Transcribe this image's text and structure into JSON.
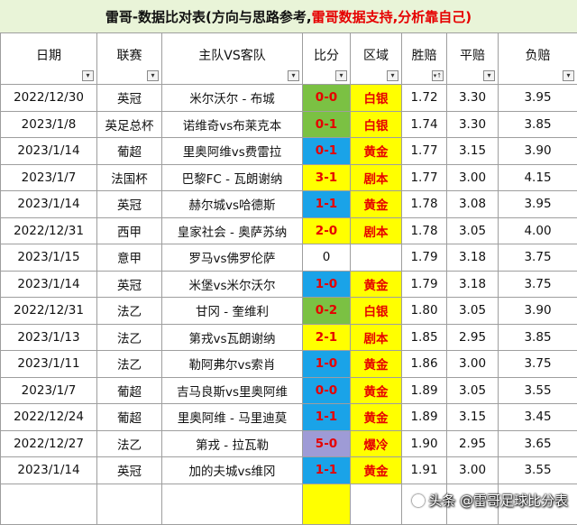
{
  "banner": {
    "part1": "雷哥-数据比对表(方向与思路参考,",
    "part2": "雷哥数据支持,分析靠自己)"
  },
  "headers": [
    "日期",
    "联赛",
    "主队VS客队",
    "比分",
    "区域",
    "胜赔",
    "平赔",
    "负赔"
  ],
  "sorted_column_icon": "sort-asc-filter-icon",
  "rows": [
    {
      "date": "2022/12/30",
      "league": "英冠",
      "match": "米尔沃尔 - 布城",
      "score": "0-0",
      "score_color": "green",
      "region": "白银",
      "win": "1.72",
      "draw": "3.30",
      "loss": "3.95"
    },
    {
      "date": "2023/1/8",
      "league": "英足总杯",
      "match": "诺维奇vs布莱克本",
      "score": "0-1",
      "score_color": "green",
      "region": "白银",
      "win": "1.74",
      "draw": "3.30",
      "loss": "3.85"
    },
    {
      "date": "2023/1/14",
      "league": "葡超",
      "match": "里奥阿维vs费雷拉",
      "score": "0-1",
      "score_color": "blue",
      "region": "黄金",
      "win": "1.77",
      "draw": "3.15",
      "loss": "3.90"
    },
    {
      "date": "2023/1/7",
      "league": "法国杯",
      "match": "巴黎FC - 瓦朗谢纳",
      "score": "3-1",
      "score_color": "yellow",
      "region": "剧本",
      "win": "1.77",
      "draw": "3.00",
      "loss": "4.15"
    },
    {
      "date": "2023/1/14",
      "league": "英冠",
      "match": "赫尔城vs哈德斯",
      "score": "1-1",
      "score_color": "blue",
      "region": "黄金",
      "win": "1.78",
      "draw": "3.08",
      "loss": "3.95"
    },
    {
      "date": "2022/12/31",
      "league": "西甲",
      "match": "皇家社会 - 奥萨苏纳",
      "score": "2-0",
      "score_color": "yellow",
      "region": "剧本",
      "win": "1.78",
      "draw": "3.05",
      "loss": "4.00"
    },
    {
      "date": "2023/1/15",
      "league": "意甲",
      "match": "罗马vs佛罗伦萨",
      "score": "0",
      "score_color": "none",
      "region": "",
      "win": "1.79",
      "draw": "3.18",
      "loss": "3.75"
    },
    {
      "date": "2023/1/14",
      "league": "英冠",
      "match": "米堡vs米尔沃尔",
      "score": "1-0",
      "score_color": "blue",
      "region": "黄金",
      "win": "1.79",
      "draw": "3.18",
      "loss": "3.75"
    },
    {
      "date": "2022/12/31",
      "league": "法乙",
      "match": "甘冈 - 奎维利",
      "score": "0-2",
      "score_color": "green",
      "region": "白银",
      "win": "1.80",
      "draw": "3.05",
      "loss": "3.90"
    },
    {
      "date": "2023/1/13",
      "league": "法乙",
      "match": "第戎vs瓦朗谢纳",
      "score": "2-1",
      "score_color": "yellow",
      "region": "剧本",
      "win": "1.85",
      "draw": "2.95",
      "loss": "3.85"
    },
    {
      "date": "2023/1/11",
      "league": "法乙",
      "match": "勒阿弗尔vs索肖",
      "score": "1-0",
      "score_color": "blue",
      "region": "黄金",
      "win": "1.86",
      "draw": "3.00",
      "loss": "3.75"
    },
    {
      "date": "2023/1/7",
      "league": "葡超",
      "match": "吉马良斯vs里奥阿维",
      "score": "0-0",
      "score_color": "blue",
      "region": "黄金",
      "win": "1.89",
      "draw": "3.05",
      "loss": "3.55"
    },
    {
      "date": "2022/12/24",
      "league": "葡超",
      "match": "里奥阿维 - 马里迪莫",
      "score": "1-1",
      "score_color": "blue",
      "region": "黄金",
      "win": "1.89",
      "draw": "3.15",
      "loss": "3.45"
    },
    {
      "date": "2022/12/27",
      "league": "法乙",
      "match": "第戎 - 拉瓦勒",
      "score": "5-0",
      "score_color": "purple",
      "region": "爆冷",
      "win": "1.90",
      "draw": "2.95",
      "loss": "3.65"
    },
    {
      "date": "2023/1/14",
      "league": "英冠",
      "match": "加的夫城vs维冈",
      "score": "1-1",
      "score_color": "blue",
      "region": "黄金",
      "win": "1.91",
      "draw": "3.00",
      "loss": "3.55"
    }
  ],
  "watermark": "头条 @雷哥足球比分表",
  "colors": {
    "banner_bg": "#e9f4d8",
    "red_text": "#e60000",
    "score_green": "#7bc143",
    "score_blue": "#1aa3e8",
    "score_yellow": "#ffff00",
    "score_purple": "#9e9bd6",
    "region_yellow": "#ffff00"
  }
}
